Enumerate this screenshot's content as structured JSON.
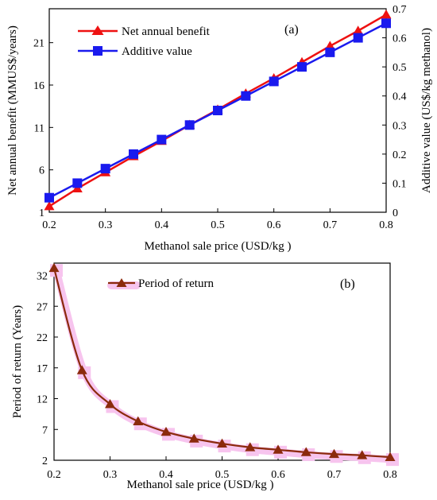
{
  "chart_data": [
    {
      "panel_label": "(a)",
      "type": "line",
      "x": [
        0.2,
        0.25,
        0.3,
        0.35,
        0.4,
        0.45,
        0.5,
        0.55,
        0.6,
        0.65,
        0.7,
        0.75,
        0.8
      ],
      "xlabel": "Methanol sale price (USD/kg )",
      "ylabel": "Net annual benefit (MMUS$/years)",
      "y2label": "Additive value (US$/kg methanol)",
      "xlim": [
        0.2,
        0.8
      ],
      "ylim": [
        1,
        25
      ],
      "y2lim": [
        0,
        0.7
      ],
      "xticks": [
        "0.2",
        "0.3",
        "0.4",
        "0.5",
        "0.6",
        "0.7",
        "0.8"
      ],
      "yticks": [
        "1",
        "6",
        "11",
        "16",
        "21"
      ],
      "y2ticks": [
        "0",
        "0.1",
        "0.2",
        "0.3",
        "0.4",
        "0.5",
        "0.6",
        "0.7"
      ],
      "legend_position": "top-left",
      "series": [
        {
          "name": "Net annual benefit",
          "axis": "left",
          "marker": "triangle",
          "color": "#ee1111",
          "values": [
            1.7,
            3.8,
            5.7,
            7.6,
            9.4,
            11.3,
            13.1,
            15.0,
            16.8,
            18.7,
            20.6,
            22.4,
            24.3
          ]
        },
        {
          "name": "Additive value",
          "axis": "right",
          "marker": "square",
          "color": "#1a1aee",
          "values": [
            0.05,
            0.1,
            0.15,
            0.2,
            0.25,
            0.3,
            0.35,
            0.4,
            0.45,
            0.5,
            0.55,
            0.6,
            0.65
          ]
        }
      ]
    },
    {
      "panel_label": "(b)",
      "type": "line",
      "x": [
        0.2,
        0.25,
        0.3,
        0.35,
        0.4,
        0.45,
        0.5,
        0.55,
        0.6,
        0.65,
        0.7,
        0.75,
        0.8
      ],
      "xlabel": "Methanol sale price (USD/kg )",
      "ylabel": "Period of return (Years)",
      "xlim": [
        0.2,
        0.8
      ],
      "ylim": [
        2,
        34
      ],
      "xticks": [
        "0.2",
        "0.3",
        "0.4",
        "0.5",
        "0.6",
        "0.7",
        "0.8"
      ],
      "yticks": [
        "2",
        "7",
        "12",
        "17",
        "22",
        "27",
        "32"
      ],
      "legend_position": "top-center",
      "series": [
        {
          "name": "Period of return",
          "marker": "triangle",
          "color": "#8b2a0c",
          "shadow_color": "#f7c4ee",
          "smooth": true,
          "values": [
            33.2,
            16.6,
            11.1,
            8.3,
            6.6,
            5.5,
            4.7,
            4.1,
            3.7,
            3.3,
            3.0,
            2.8,
            2.5
          ]
        }
      ]
    }
  ]
}
